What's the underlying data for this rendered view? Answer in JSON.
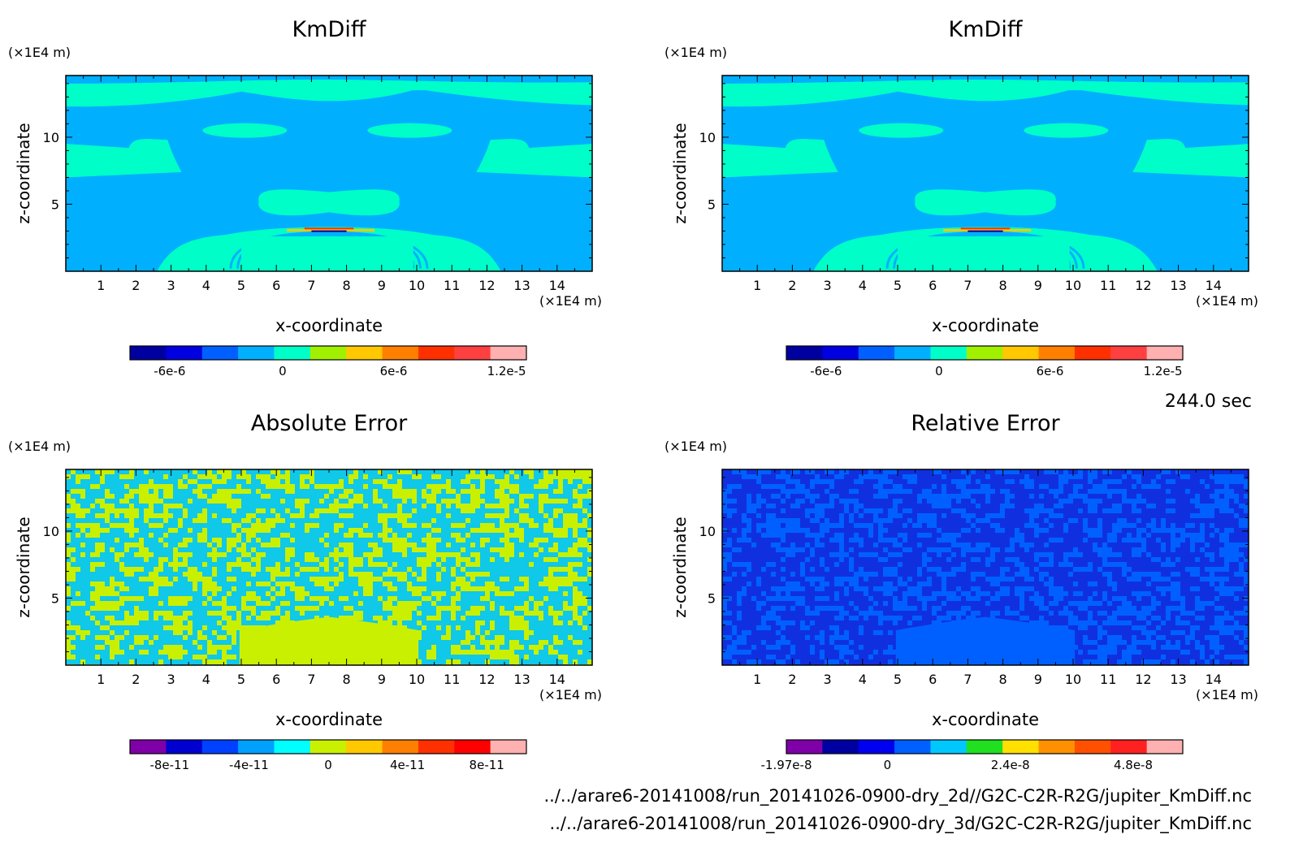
{
  "time_label": "244.0 sec",
  "file_paths": [
    "../../arare6-20141008/run_20141026-0900-dry_2d//G2C-C2R-R2G/jupiter_KmDiff.nc",
    "../../arare6-20141008/run_20141026-0900-dry_3d/G2C-C2R-R2G/jupiter_KmDiff.nc"
  ],
  "chart_data": [
    {
      "type": "heatmap",
      "id": "kmdiff-2d",
      "title": "KmDiff",
      "xlabel": "x-coordinate",
      "ylabel": "z-coordinate",
      "x_unit": "(×1E4 m)",
      "y_unit": "(×1E4 m)",
      "xlim": [
        0,
        15
      ],
      "ylim": [
        0,
        14.6
      ],
      "xticks": [
        1,
        2,
        3,
        4,
        5,
        6,
        7,
        8,
        9,
        10,
        11,
        12,
        13,
        14
      ],
      "yticks": [
        5,
        10
      ],
      "field": "kmdiff",
      "background": "#00b0ff",
      "colorbar": {
        "colors": [
          "#0000a0",
          "#0000e0",
          "#0060ff",
          "#00b0ff",
          "#00ffc8",
          "#a0f000",
          "#ffc800",
          "#ff8000",
          "#ff3000",
          "#ff4040",
          "#ffb0b0"
        ],
        "labels": [
          {
            "text": "-6e-6",
            "pos": 0.1
          },
          {
            "text": "0",
            "pos": 0.385
          },
          {
            "text": "6e-6",
            "pos": 0.665
          },
          {
            "text": "1.2e-5",
            "pos": 0.95
          }
        ]
      }
    },
    {
      "type": "heatmap",
      "id": "kmdiff-3d",
      "title": "KmDiff",
      "xlabel": "x-coordinate",
      "ylabel": "z-coordinate",
      "x_unit": "(×1E4 m)",
      "y_unit": "(×1E4 m)",
      "xlim": [
        0,
        15
      ],
      "ylim": [
        0,
        14.6
      ],
      "xticks": [
        1,
        2,
        3,
        4,
        5,
        6,
        7,
        8,
        9,
        10,
        11,
        12,
        13,
        14
      ],
      "yticks": [
        5,
        10
      ],
      "field": "kmdiff",
      "background": "#00b0ff",
      "colorbar": {
        "colors": [
          "#0000a0",
          "#0000e0",
          "#0060ff",
          "#00b0ff",
          "#00ffc8",
          "#a0f000",
          "#ffc800",
          "#ff8000",
          "#ff3000",
          "#ff4040",
          "#ffb0b0"
        ],
        "labels": [
          {
            "text": "-6e-6",
            "pos": 0.1
          },
          {
            "text": "0",
            "pos": 0.385
          },
          {
            "text": "6e-6",
            "pos": 0.665
          },
          {
            "text": "1.2e-5",
            "pos": 0.95
          }
        ]
      }
    },
    {
      "type": "heatmap",
      "id": "absolute-error",
      "title": "Absolute Error",
      "xlabel": "x-coordinate",
      "ylabel": "z-coordinate",
      "x_unit": "(×1E4 m)",
      "y_unit": "(×1E4 m)",
      "xlim": [
        0,
        15
      ],
      "ylim": [
        0,
        14.6
      ],
      "xticks": [
        1,
        2,
        3,
        4,
        5,
        6,
        7,
        8,
        9,
        10,
        11,
        12,
        13,
        14
      ],
      "yticks": [
        5,
        10
      ],
      "field": "noise",
      "background": "#c8f000",
      "noise_color": "#10c8e8",
      "colorbar": {
        "colors": [
          "#8000a8",
          "#0000d0",
          "#0040ff",
          "#00a0ff",
          "#00ffff",
          "#c8f000",
          "#ffc800",
          "#ff8000",
          "#ff3000",
          "#ff0000",
          "#ffb0b0"
        ],
        "labels": [
          {
            "text": "-8e-11",
            "pos": 0.1
          },
          {
            "text": "-4e-11",
            "pos": 0.3
          },
          {
            "text": "0",
            "pos": 0.5
          },
          {
            "text": "4e-11",
            "pos": 0.7
          },
          {
            "text": "8e-11",
            "pos": 0.9
          }
        ]
      }
    },
    {
      "type": "heatmap",
      "id": "relative-error",
      "title": "Relative Error",
      "xlabel": "x-coordinate",
      "ylabel": "z-coordinate",
      "x_unit": "(×1E4 m)",
      "y_unit": "(×1E4 m)",
      "xlim": [
        0,
        15
      ],
      "ylim": [
        0,
        14.6
      ],
      "xticks": [
        1,
        2,
        3,
        4,
        5,
        6,
        7,
        8,
        9,
        10,
        11,
        12,
        13,
        14
      ],
      "yticks": [
        5,
        10
      ],
      "field": "noise",
      "background": "#0060ff",
      "noise_color": "#1030e0",
      "colorbar": {
        "colors": [
          "#8000a8",
          "#0000a0",
          "#0000f0",
          "#0060ff",
          "#00c8ff",
          "#20e020",
          "#ffe000",
          "#ff9000",
          "#ff5000",
          "#ff2020",
          "#ffb0b0"
        ],
        "labels": [
          {
            "text": "-1.97e-8",
            "pos": 0.0
          },
          {
            "text": "0",
            "pos": 0.255
          },
          {
            "text": "2.4e-8",
            "pos": 0.565
          },
          {
            "text": "4.8e-8",
            "pos": 0.875
          }
        ]
      }
    }
  ]
}
